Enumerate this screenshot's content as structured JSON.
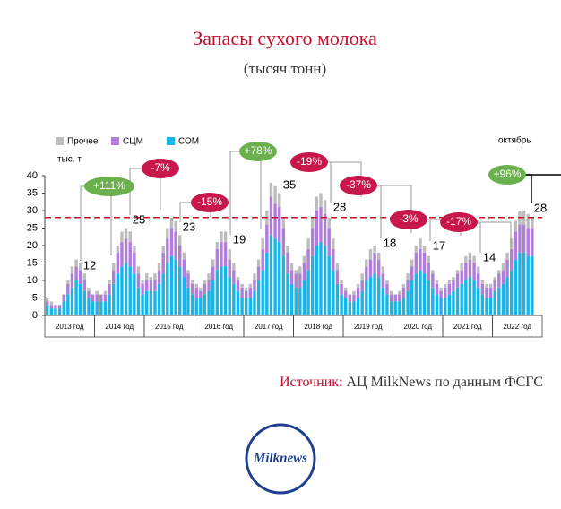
{
  "chart_data": {
    "type": "stacked_bar",
    "title": "Запасы сухого молока",
    "subtitle": "(тысяч тонн)",
    "y_unit": "тыс. т",
    "period_note": "октябрь",
    "ylim": [
      0,
      40
    ],
    "yticks": [
      0,
      5,
      10,
      15,
      20,
      25,
      30,
      35,
      40
    ],
    "reference_line": 28,
    "reference_color": "#c8102e",
    "categories": [
      null,
      null,
      null,
      null,
      null,
      null,
      null,
      null,
      null,
      null,
      null,
      null,
      null,
      null,
      null,
      null,
      null,
      null,
      null,
      null,
      null,
      null,
      null,
      null,
      null,
      null,
      null,
      null,
      null,
      null,
      null,
      null,
      null,
      null,
      null,
      null,
      null,
      null,
      null,
      null,
      null,
      null,
      null,
      null,
      null,
      null,
      null,
      null,
      null,
      null,
      null,
      null,
      null,
      null,
      null,
      null,
      null,
      null,
      null,
      null,
      null,
      null,
      null,
      null,
      null,
      null,
      null,
      null,
      null,
      null,
      null,
      null,
      null,
      null,
      null,
      null,
      null,
      null,
      null,
      null,
      null,
      null,
      null,
      null,
      null,
      null,
      null,
      null,
      null,
      null,
      null,
      null,
      null,
      null,
      null,
      null,
      null,
      null,
      null,
      null,
      null,
      null,
      null,
      null,
      null,
      null,
      null,
      null,
      null,
      null,
      null,
      null,
      null,
      null,
      null,
      null,
      null,
      null
    ],
    "year_labels": [
      "2013 год",
      "2014 год",
      "2015 год",
      "2016 год",
      "2017 год",
      "2018 год",
      "2019 год",
      "2020 год",
      "2021 год",
      "2022 год"
    ],
    "series": [
      {
        "name": "СОМ",
        "color": "#1ab5e6",
        "values": [
          3,
          2,
          2,
          2,
          4,
          6,
          8,
          10,
          9,
          7,
          5,
          4,
          4,
          4,
          4,
          6,
          9,
          12,
          14,
          15,
          14,
          12,
          8,
          6,
          7,
          7,
          7,
          9,
          12,
          15,
          17,
          16,
          14,
          11,
          8,
          6,
          5,
          5,
          6,
          7,
          10,
          13,
          14,
          14,
          11,
          9,
          7,
          5,
          5,
          5,
          7,
          10,
          13,
          18,
          23,
          22,
          21,
          17,
          12,
          9,
          8,
          8,
          10,
          13,
          17,
          20,
          21,
          20,
          17,
          13,
          9,
          6,
          5,
          4,
          4,
          5,
          7,
          10,
          11,
          12,
          11,
          8,
          6,
          4,
          4,
          4,
          5,
          7,
          10,
          12,
          13,
          12,
          10,
          8,
          6,
          5,
          5,
          6,
          7,
          8,
          9,
          10,
          11,
          10,
          8,
          6,
          5,
          5,
          7,
          8,
          9,
          11,
          13,
          16,
          18,
          18,
          17,
          17
        ]
      },
      {
        "name": "СЦМ",
        "color": "#b07ed8",
        "values": [
          1,
          1,
          1,
          1,
          2,
          3,
          4,
          4,
          4,
          3,
          2,
          2,
          2,
          2,
          2,
          3,
          4,
          6,
          7,
          7,
          7,
          6,
          4,
          3,
          3,
          3,
          3,
          4,
          6,
          7,
          8,
          8,
          6,
          5,
          4,
          3,
          3,
          2,
          3,
          3,
          4,
          6,
          7,
          7,
          5,
          4,
          3,
          3,
          2,
          3,
          3,
          4,
          6,
          8,
          11,
          10,
          10,
          8,
          6,
          4,
          4,
          4,
          5,
          6,
          8,
          10,
          10,
          9,
          8,
          6,
          4,
          3,
          2,
          2,
          2,
          3,
          3,
          4,
          5,
          6,
          5,
          4,
          3,
          2,
          2,
          2,
          3,
          3,
          4,
          6,
          6,
          6,
          5,
          4,
          3,
          2,
          3,
          3,
          3,
          4,
          4,
          5,
          5,
          5,
          4,
          3,
          3,
          3,
          3,
          4,
          4,
          5,
          6,
          8,
          8,
          8,
          8,
          8
        ]
      },
      {
        "name": "Прочее",
        "color": "#bdbdbd",
        "values": [
          1,
          1,
          0,
          0,
          0,
          1,
          2,
          2,
          2,
          2,
          1,
          0,
          1,
          0,
          1,
          1,
          2,
          2,
          3,
          3,
          3,
          2,
          2,
          1,
          2,
          1,
          2,
          2,
          2,
          3,
          3,
          3,
          3,
          2,
          1,
          1,
          1,
          1,
          1,
          2,
          2,
          2,
          3,
          3,
          3,
          2,
          1,
          1,
          1,
          1,
          2,
          2,
          3,
          4,
          4,
          5,
          4,
          3,
          2,
          2,
          1,
          2,
          2,
          3,
          3,
          4,
          4,
          4,
          3,
          3,
          2,
          1,
          1,
          0,
          1,
          1,
          2,
          2,
          3,
          2,
          2,
          2,
          1,
          1,
          0,
          1,
          1,
          2,
          2,
          2,
          3,
          2,
          2,
          1,
          1,
          1,
          1,
          1,
          1,
          1,
          2,
          2,
          2,
          2,
          2,
          1,
          1,
          1,
          1,
          1,
          2,
          2,
          3,
          3,
          4,
          4,
          4,
          3
        ]
      }
    ],
    "callouts": [
      12,
      25,
      23,
      19,
      35,
      28,
      18,
      17,
      14,
      28
    ],
    "changes": [
      {
        "label": "+111%",
        "color": "#6ab04c"
      },
      {
        "label": "-7%",
        "color": "#c8174a"
      },
      {
        "label": "-15%",
        "color": "#c8174a"
      },
      {
        "label": "+78%",
        "color": "#6ab04c"
      },
      {
        "label": "-19%",
        "color": "#c8174a"
      },
      {
        "label": "-37%",
        "color": "#c8174a"
      },
      {
        "label": "-3%",
        "color": "#c8174a"
      },
      {
        "label": "-17%",
        "color": "#c8174a"
      },
      {
        "label": "+96%",
        "color": "#6ab04c"
      }
    ],
    "source_label": "Источник:",
    "source_text": "АЦ MilkNews по данным ФСГС",
    "logo": "Milknews"
  }
}
